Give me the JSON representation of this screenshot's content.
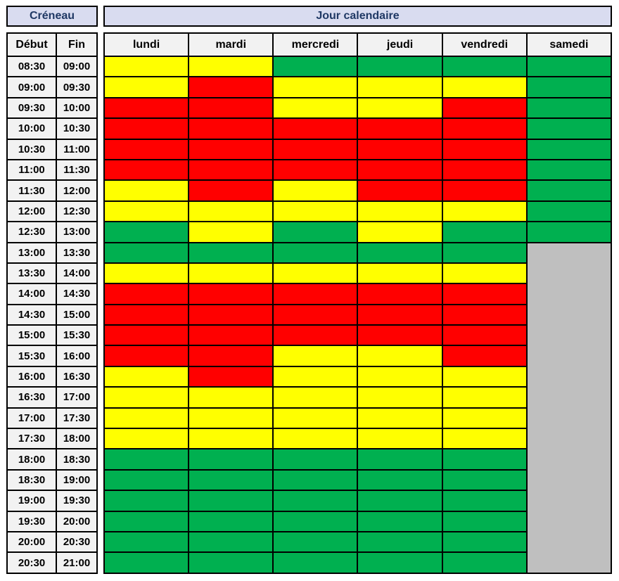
{
  "labels": {
    "creneau": "Créneau",
    "jour_calendaire": "Jour calendaire",
    "debut": "Début",
    "fin": "Fin"
  },
  "colors": {
    "yellow": "#FFFF00",
    "red": "#FF0000",
    "green": "#00B050",
    "gray": "#BFBFBF",
    "header_fill": "#D9DCF0",
    "subheader_fill": "#F2F2F2",
    "header_text": "#1F3864",
    "border": "#000000"
  },
  "chart_data": {
    "type": "heatmap",
    "title": "Créneau / Jour calendaire",
    "x_categories": [
      "lundi",
      "mardi",
      "mercredi",
      "jeudi",
      "vendredi",
      "samedi"
    ],
    "value_legend": {
      "yellow": "#FFFF00",
      "red": "#FF0000",
      "green": "#00B050",
      "gray": "#BFBFBF"
    },
    "merged_region": {
      "column_index": 5,
      "start_row_index": 9,
      "row_count": 16,
      "value": "gray"
    },
    "rows": [
      {
        "debut": "08:30",
        "fin": "09:00",
        "values": [
          "yellow",
          "yellow",
          "green",
          "green",
          "green",
          "green"
        ]
      },
      {
        "debut": "09:00",
        "fin": "09:30",
        "values": [
          "yellow",
          "red",
          "yellow",
          "yellow",
          "yellow",
          "green"
        ]
      },
      {
        "debut": "09:30",
        "fin": "10:00",
        "values": [
          "red",
          "red",
          "yellow",
          "yellow",
          "red",
          "green"
        ]
      },
      {
        "debut": "10:00",
        "fin": "10:30",
        "values": [
          "red",
          "red",
          "red",
          "red",
          "red",
          "green"
        ]
      },
      {
        "debut": "10:30",
        "fin": "11:00",
        "values": [
          "red",
          "red",
          "red",
          "red",
          "red",
          "green"
        ]
      },
      {
        "debut": "11:00",
        "fin": "11:30",
        "values": [
          "red",
          "red",
          "red",
          "red",
          "red",
          "green"
        ]
      },
      {
        "debut": "11:30",
        "fin": "12:00",
        "values": [
          "yellow",
          "red",
          "yellow",
          "red",
          "red",
          "green"
        ]
      },
      {
        "debut": "12:00",
        "fin": "12:30",
        "values": [
          "yellow",
          "yellow",
          "yellow",
          "yellow",
          "yellow",
          "green"
        ]
      },
      {
        "debut": "12:30",
        "fin": "13:00",
        "values": [
          "green",
          "yellow",
          "green",
          "yellow",
          "green",
          "green"
        ]
      },
      {
        "debut": "13:00",
        "fin": "13:30",
        "values": [
          "green",
          "green",
          "green",
          "green",
          "green",
          "gray"
        ]
      },
      {
        "debut": "13:30",
        "fin": "14:00",
        "values": [
          "yellow",
          "yellow",
          "yellow",
          "yellow",
          "yellow",
          "gray"
        ]
      },
      {
        "debut": "14:00",
        "fin": "14:30",
        "values": [
          "red",
          "red",
          "red",
          "red",
          "red",
          "gray"
        ]
      },
      {
        "debut": "14:30",
        "fin": "15:00",
        "values": [
          "red",
          "red",
          "red",
          "red",
          "red",
          "gray"
        ]
      },
      {
        "debut": "15:00",
        "fin": "15:30",
        "values": [
          "red",
          "red",
          "red",
          "red",
          "red",
          "gray"
        ]
      },
      {
        "debut": "15:30",
        "fin": "16:00",
        "values": [
          "red",
          "red",
          "yellow",
          "yellow",
          "red",
          "gray"
        ]
      },
      {
        "debut": "16:00",
        "fin": "16:30",
        "values": [
          "yellow",
          "red",
          "yellow",
          "yellow",
          "yellow",
          "gray"
        ]
      },
      {
        "debut": "16:30",
        "fin": "17:00",
        "values": [
          "yellow",
          "yellow",
          "yellow",
          "yellow",
          "yellow",
          "gray"
        ]
      },
      {
        "debut": "17:00",
        "fin": "17:30",
        "values": [
          "yellow",
          "yellow",
          "yellow",
          "yellow",
          "yellow",
          "gray"
        ]
      },
      {
        "debut": "17:30",
        "fin": "18:00",
        "values": [
          "yellow",
          "yellow",
          "yellow",
          "yellow",
          "yellow",
          "gray"
        ]
      },
      {
        "debut": "18:00",
        "fin": "18:30",
        "values": [
          "green",
          "green",
          "green",
          "green",
          "green",
          "gray"
        ]
      },
      {
        "debut": "18:30",
        "fin": "19:00",
        "values": [
          "green",
          "green",
          "green",
          "green",
          "green",
          "gray"
        ]
      },
      {
        "debut": "19:00",
        "fin": "19:30",
        "values": [
          "green",
          "green",
          "green",
          "green",
          "green",
          "gray"
        ]
      },
      {
        "debut": "19:30",
        "fin": "20:00",
        "values": [
          "green",
          "green",
          "green",
          "green",
          "green",
          "gray"
        ]
      },
      {
        "debut": "20:00",
        "fin": "20:30",
        "values": [
          "green",
          "green",
          "green",
          "green",
          "green",
          "gray"
        ]
      },
      {
        "debut": "20:30",
        "fin": "21:00",
        "values": [
          "green",
          "green",
          "green",
          "green",
          "green",
          "gray"
        ]
      }
    ]
  }
}
